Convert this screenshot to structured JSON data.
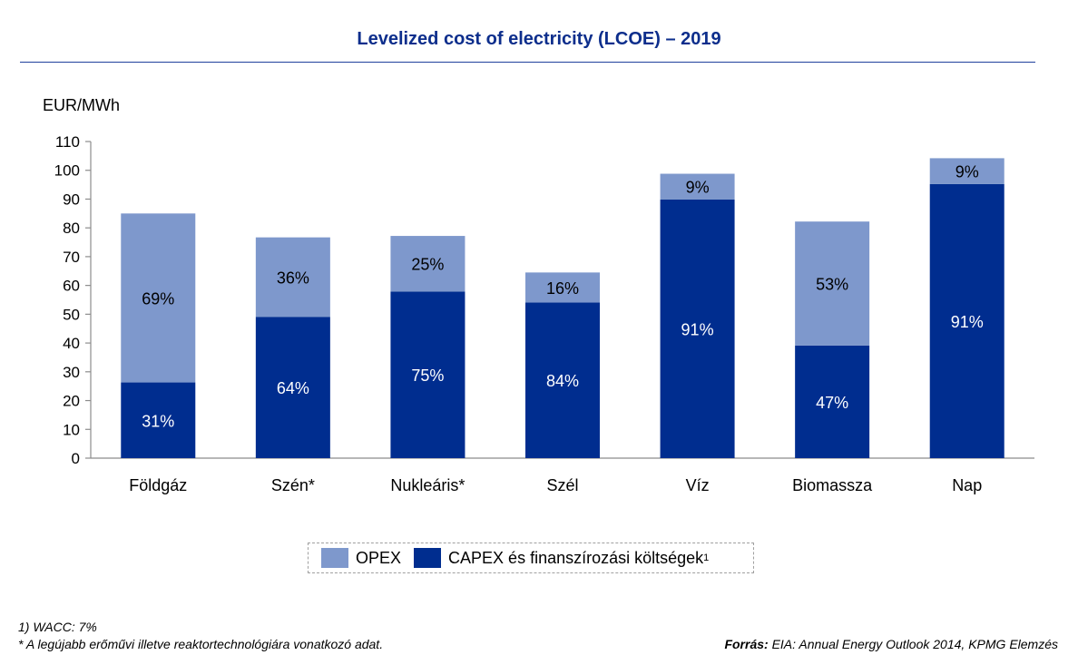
{
  "title": "Levelized cost of electricity (LCOE) – 2019",
  "chart_data": {
    "type": "bar",
    "stacked": true,
    "ylabel": "EUR/MWh",
    "ylim": [
      0,
      110
    ],
    "yticks": [
      0,
      10,
      20,
      30,
      40,
      50,
      60,
      70,
      80,
      90,
      100,
      110
    ],
    "categories": [
      "Földgáz",
      "Szén*",
      "Nukleáris*",
      "Szél",
      "Víz",
      "Biomassza",
      "Nap"
    ],
    "series": [
      {
        "name": "CAPEX és finanszírozási költségek",
        "color": "#002d8f",
        "values": [
          26.3,
          49.1,
          57.9,
          54.1,
          89.9,
          39.1,
          95.2
        ],
        "labels": [
          "31%",
          "64%",
          "75%",
          "84%",
          "91%",
          "47%",
          "91%"
        ]
      },
      {
        "name": "OPEX",
        "color": "#7e98cc",
        "values": [
          58.7,
          27.6,
          19.3,
          10.4,
          8.9,
          43.1,
          9.0
        ],
        "labels": [
          "69%",
          "36%",
          "25%",
          "16%",
          "9%",
          "53%",
          "9%"
        ]
      }
    ]
  },
  "legend": {
    "opex_label": "OPEX",
    "capex_label": "CAPEX és finanszírozási költségek",
    "capex_sup": "1"
  },
  "footnotes": {
    "note1": "1) WACC: 7%",
    "note2": "* A legújabb erőművi illetve reaktortechnológiára vonatkozó adat."
  },
  "source": {
    "label": "Forrás:",
    "text": "EIA: Annual Energy Outlook 2014, KPMG Elemzés"
  },
  "colors": {
    "title": "#0d2e8c",
    "capex": "#002d8f",
    "opex": "#7e98cc",
    "axis": "#8c8c8c"
  }
}
